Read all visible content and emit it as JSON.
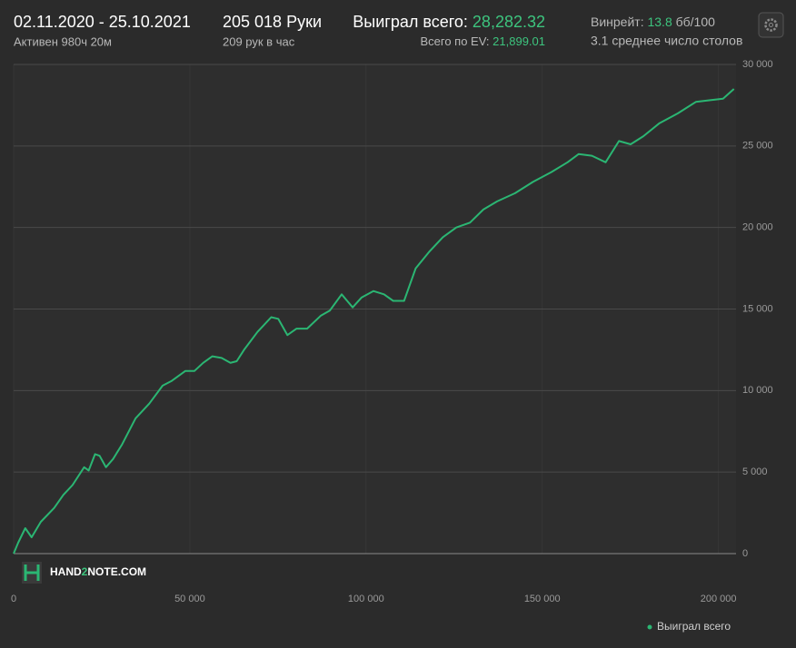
{
  "header": {
    "date_range": "02.11.2020 - 25.10.2021",
    "active": "Активен 980ч 20м",
    "hands": "205 018 Руки",
    "hands_per_hour": "209 рук в час",
    "won_label": "Выиграл всего:",
    "won_value": "28,282.32",
    "ev_label": "Всего по EV:",
    "ev_value": "21,899.01",
    "winrate_label": "Винрейт:",
    "winrate_value": "13.8",
    "winrate_unit": "бб/100",
    "tables": "3.1 среднее число столов",
    "logo": [
      "HAND",
      "2",
      "NOTE.COM"
    ]
  },
  "chart_data": {
    "type": "line",
    "x": [
      0,
      1300,
      3300,
      5100,
      7700,
      11500,
      14100,
      16700,
      20000,
      21300,
      23100,
      24400,
      26200,
      28200,
      30800,
      34600,
      38500,
      42300,
      44900,
      48700,
      51300,
      53800,
      56400,
      59000,
      61500,
      63300,
      65400,
      69200,
      73100,
      75100,
      77700,
      80300,
      83300,
      87200,
      89700,
      93100,
      96200,
      98700,
      102100,
      105100,
      107700,
      110800,
      114100,
      117900,
      121800,
      125600,
      129500,
      133300,
      137200,
      142300,
      147400,
      152600,
      157200,
      160300,
      164100,
      168000,
      171800,
      175100,
      178700,
      183300,
      188500,
      193600,
      197400,
      201300,
      204400
    ],
    "series": [
      {
        "name": "Выиграл всего",
        "color": "#2bb673",
        "values": [
          0,
          670,
          1560,
          1000,
          1950,
          2800,
          3600,
          4200,
          5300,
          5100,
          6100,
          6000,
          5300,
          5800,
          6700,
          8300,
          9200,
          10300,
          10600,
          11200,
          11200,
          11700,
          12100,
          12000,
          11700,
          11800,
          12500,
          13600,
          14500,
          14400,
          13400,
          13800,
          13800,
          14600,
          14900,
          15900,
          15100,
          15700,
          16100,
          15900,
          15500,
          15500,
          17500,
          18500,
          19400,
          20000,
          20300,
          21100,
          21600,
          22100,
          22800,
          23400,
          24000,
          24500,
          24400,
          24000,
          25300,
          25100,
          25600,
          26400,
          27000,
          27700,
          27800,
          27900,
          28500
        ]
      }
    ],
    "xlim": [
      0,
      205000
    ],
    "ylim": [
      0,
      30000
    ],
    "xticks": [
      0,
      {
        "value": 50000,
        "label": "50 000"
      },
      {
        "value": 100000,
        "label": "100 000"
      },
      {
        "value": 150000,
        "label": "150 000"
      },
      {
        "value": 200000,
        "label": "200 000"
      }
    ],
    "yticks": [
      0,
      {
        "value": 5000,
        "label": "5 000"
      },
      {
        "value": 10000,
        "label": "10 000"
      },
      {
        "value": 15000,
        "label": "15 000"
      },
      {
        "value": 20000,
        "label": "20 000"
      },
      {
        "value": 25000,
        "label": "25 000"
      },
      {
        "value": 30000,
        "label": "30 000"
      }
    ],
    "grid": true
  }
}
